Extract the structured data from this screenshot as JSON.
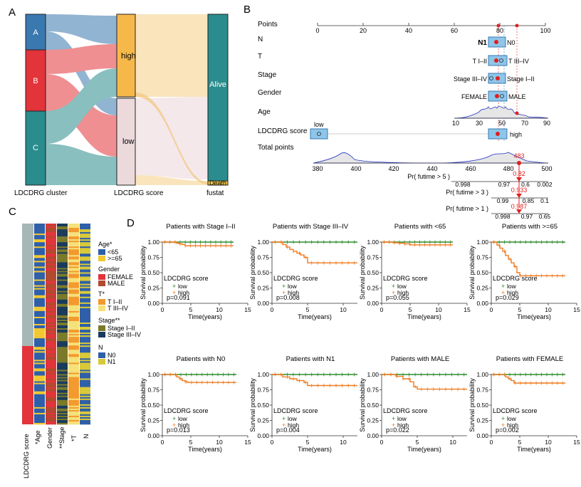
{
  "panels": {
    "A": "A",
    "B": "B",
    "C": "C",
    "D": "D"
  },
  "colors": {
    "A": "#3a78b0",
    "B": "#e2343a",
    "C": "#2a8c8c",
    "high": "#f7b84a",
    "low": "#ecd9dc",
    "alive": "#2a8c8c",
    "death": "#f5c94a",
    "km_low": "#2e8b2e",
    "km_high": "#f07a1e",
    "nomo_box": "#8ec6ea",
    "nomo_dot": "#e01f1f",
    "hm_blue": "#2f5fa8",
    "hm_yellow": "#f2c830",
    "hm_red": "#e2343a",
    "hm_gray": "#a7b6b6",
    "hm_olive": "#7a7a2a",
    "hm_navy": "#1a3b5c",
    "hm_orange": "#f29a2e"
  },
  "sankey": {
    "axis_labels": [
      "LDCDRG cluster",
      "LDCDRG score",
      "fustat"
    ],
    "cluster_labels": [
      "A",
      "B",
      "C"
    ],
    "score_labels": [
      "high",
      "low"
    ],
    "status_labels": [
      "Alive",
      "Death"
    ]
  },
  "nomogram": {
    "rows": [
      "Points",
      "N",
      "T",
      "Stage",
      "Gender",
      "Age",
      "LDCDRG score",
      "Total points"
    ],
    "points_ticks": [
      "0",
      "20",
      "40",
      "60",
      "80",
      "100"
    ],
    "N_labels": [
      "N1",
      "N0"
    ],
    "T_labels": [
      "T I–II",
      "T III–IV"
    ],
    "Stage_labels": [
      "Stage III–IV",
      "Stage I–II"
    ],
    "Gender_labels": [
      "FEMALE",
      "MALE"
    ],
    "Age_ticks": [
      "10",
      "30",
      "50",
      "70",
      "90"
    ],
    "score_labels": [
      "low",
      "high"
    ],
    "total_ticks": [
      "380",
      "400",
      "420",
      "440",
      "460",
      "480",
      "500"
    ],
    "total_value": "483",
    "prob_rows": [
      {
        "label": "Pr( futime > 5 )",
        "value": "0.82",
        "ticks": [
          "0.998",
          "0.97",
          "0.6",
          "0.002"
        ]
      },
      {
        "label": "Pr( futime > 3 )",
        "value": "0.933",
        "ticks": [
          "0.99",
          "0.85",
          "0.1"
        ]
      },
      {
        "label": "Pr( futime > 1 )",
        "value": "0.987",
        "ticks": [
          "0.998",
          "0.97",
          "0.65"
        ]
      }
    ]
  },
  "heatmap": {
    "col_labels": [
      "LDCDRG score",
      "*Age",
      "Gender",
      "**Stage",
      "*T",
      "N"
    ],
    "legend": [
      {
        "title": "Age*",
        "items": [
          "<65",
          ">=65"
        ]
      },
      {
        "title": "Gender",
        "items": [
          "FEMALE",
          "MALE"
        ]
      },
      {
        "title": "T*",
        "items": [
          "T I–II",
          "T III–IV"
        ]
      },
      {
        "title": "Stage**",
        "items": [
          "Stage I–II",
          "Stage III–IV"
        ]
      },
      {
        "title": "N",
        "items": [
          "N0",
          "N1"
        ]
      }
    ]
  },
  "km_common": {
    "ylabel": "Survival probability",
    "xlabel": "Time(years)",
    "legend_title": "LDCDRG score",
    "legend_low": "low",
    "legend_high": "high",
    "yticks": [
      "0.00",
      "0.25",
      "0.50",
      "0.75",
      "1.00"
    ]
  },
  "chart_data": [
    {
      "type": "line",
      "title": "Patients with Stage I–II",
      "xlim": [
        0,
        15
      ],
      "ylim": [
        0,
        1
      ],
      "xticks": [
        "0",
        "5",
        "10",
        "15"
      ],
      "pvalue": "p=0.091",
      "series": [
        {
          "name": "low",
          "x": [
            0,
            12.5
          ],
          "y": [
            1,
            1
          ]
        },
        {
          "name": "high",
          "x": [
            0,
            2.5,
            3,
            3.5,
            4,
            12.5
          ],
          "y": [
            1,
            0.98,
            0.97,
            0.96,
            0.94,
            0.94
          ]
        }
      ]
    },
    {
      "type": "line",
      "title": "Patients with Stage III–IV",
      "xlim": [
        0,
        12
      ],
      "ylim": [
        0,
        1
      ],
      "xticks": [
        "0",
        "5",
        "10"
      ],
      "pvalue": "p=0.008",
      "series": [
        {
          "name": "low",
          "x": [
            0,
            12
          ],
          "y": [
            1,
            1
          ]
        },
        {
          "name": "high",
          "x": [
            0,
            1.5,
            2,
            2.5,
            3,
            3.5,
            4,
            4.5,
            5,
            12
          ],
          "y": [
            1,
            0.96,
            0.92,
            0.88,
            0.85,
            0.82,
            0.79,
            0.75,
            0.66,
            0.66
          ]
        }
      ]
    },
    {
      "type": "line",
      "title": "Patients with <65",
      "xlim": [
        0,
        15
      ],
      "ylim": [
        0,
        1
      ],
      "xticks": [
        "0",
        "5",
        "10",
        "15"
      ],
      "pvalue": "p=0.055",
      "series": [
        {
          "name": "low",
          "x": [
            0,
            12.5
          ],
          "y": [
            1,
            1
          ]
        },
        {
          "name": "high",
          "x": [
            0,
            2,
            3,
            4,
            5,
            12.5
          ],
          "y": [
            1,
            0.99,
            0.98,
            0.97,
            0.955,
            0.955
          ]
        }
      ]
    },
    {
      "type": "line",
      "title": "Patients with >=65",
      "xlim": [
        0,
        15
      ],
      "ylim": [
        0,
        1
      ],
      "xticks": [
        "0",
        "5",
        "10",
        "15"
      ],
      "pvalue": "p=0.029",
      "series": [
        {
          "name": "low",
          "x": [
            0,
            13
          ],
          "y": [
            1,
            1
          ]
        },
        {
          "name": "high",
          "x": [
            0,
            1,
            1.5,
            2,
            2.5,
            3,
            3.5,
            4,
            4.5,
            5,
            13
          ],
          "y": [
            1,
            0.95,
            0.9,
            0.85,
            0.78,
            0.72,
            0.66,
            0.6,
            0.5,
            0.45,
            0.45
          ]
        }
      ]
    },
    {
      "type": "line",
      "title": "Patients with N0",
      "xlim": [
        0,
        15
      ],
      "ylim": [
        0,
        1
      ],
      "xticks": [
        "0",
        "5",
        "10",
        "15"
      ],
      "pvalue": "p=0.013",
      "series": [
        {
          "name": "low",
          "x": [
            0,
            13
          ],
          "y": [
            1,
            1
          ]
        },
        {
          "name": "high",
          "x": [
            0,
            2.5,
            3,
            3.5,
            4,
            4.5,
            13
          ],
          "y": [
            1,
            0.96,
            0.93,
            0.9,
            0.88,
            0.87,
            0.87
          ]
        }
      ]
    },
    {
      "type": "line",
      "title": "Patients with N1",
      "xlim": [
        0,
        12
      ],
      "ylim": [
        0,
        1
      ],
      "xticks": [
        "0",
        "5",
        "10"
      ],
      "pvalue": "p=0.004",
      "series": [
        {
          "name": "low",
          "x": [
            0,
            12
          ],
          "y": [
            1,
            1
          ]
        },
        {
          "name": "high",
          "x": [
            0,
            1.5,
            2.5,
            3.5,
            4.5,
            5,
            12
          ],
          "y": [
            1,
            0.96,
            0.93,
            0.9,
            0.87,
            0.82,
            0.82
          ]
        }
      ]
    },
    {
      "type": "line",
      "title": "Patients with MALE",
      "xlim": [
        0,
        12
      ],
      "ylim": [
        0,
        1
      ],
      "xticks": [
        "0",
        "5",
        "10"
      ],
      "pvalue": "p=0.022",
      "series": [
        {
          "name": "low",
          "x": [
            0,
            12
          ],
          "y": [
            1,
            1
          ]
        },
        {
          "name": "high",
          "x": [
            0,
            2,
            3,
            4,
            4.5,
            5,
            12
          ],
          "y": [
            1,
            0.97,
            0.93,
            0.88,
            0.8,
            0.76,
            0.76
          ]
        }
      ]
    },
    {
      "type": "line",
      "title": "Patients with FEMALE",
      "xlim": [
        0,
        15
      ],
      "ylim": [
        0,
        1
      ],
      "xticks": [
        "0",
        "5",
        "10",
        "15"
      ],
      "pvalue": "p=0.002",
      "series": [
        {
          "name": "low",
          "x": [
            0,
            13
          ],
          "y": [
            1,
            1
          ]
        },
        {
          "name": "high",
          "x": [
            0,
            2.5,
            3,
            3.5,
            4,
            13
          ],
          "y": [
            1,
            0.96,
            0.93,
            0.9,
            0.86,
            0.86
          ]
        }
      ]
    }
  ]
}
